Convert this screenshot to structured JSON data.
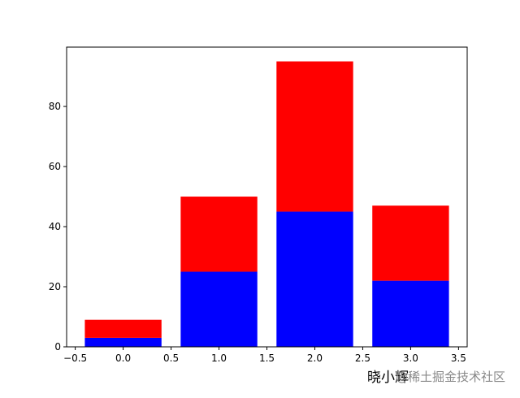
{
  "chart_data": {
    "type": "stacked_bar",
    "x": [
      0,
      1,
      2,
      3
    ],
    "series": [
      {
        "color": "#0000ff",
        "values": [
          3,
          25,
          45,
          22
        ]
      },
      {
        "color": "#ff0000",
        "values": [
          6,
          25,
          50,
          25
        ]
      }
    ],
    "xlim": [
      -0.59,
      3.59
    ],
    "xticks": [
      {
        "value": -0.5,
        "label": "−0.5"
      },
      {
        "value": 0,
        "label": "0.0"
      },
      {
        "value": 0.5,
        "label": "0.5"
      },
      {
        "value": 1,
        "label": "1.0"
      },
      {
        "value": 1.5,
        "label": "1.5"
      },
      {
        "value": 2,
        "label": "2.0"
      },
      {
        "value": 2.5,
        "label": "2.5"
      },
      {
        "value": 3,
        "label": "3.0"
      },
      {
        "value": 3.5,
        "label": "3.5"
      }
    ],
    "ylim": [
      0,
      99.75
    ],
    "yticks": [
      0,
      20,
      40,
      60,
      80
    ],
    "grid": false,
    "watermark": "@稀土掘金技术社区",
    "signature": "晓小辉"
  }
}
